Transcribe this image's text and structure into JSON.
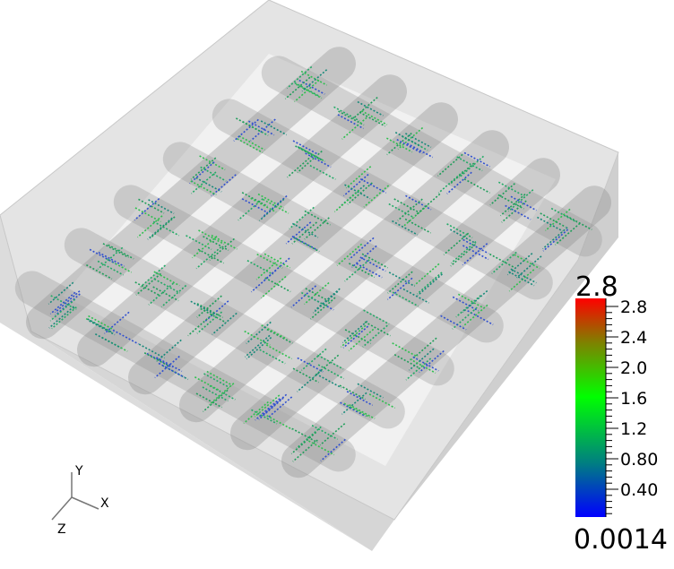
{
  "colorbar": {
    "max_label": "2.8",
    "min_label": "0.0014",
    "tick_labels": [
      "2.8",
      "2.4",
      "2.0",
      "1.6",
      "1.2",
      "0.80",
      "0.40"
    ]
  },
  "axes": {
    "x": "X",
    "y": "Y",
    "z": "Z"
  }
}
